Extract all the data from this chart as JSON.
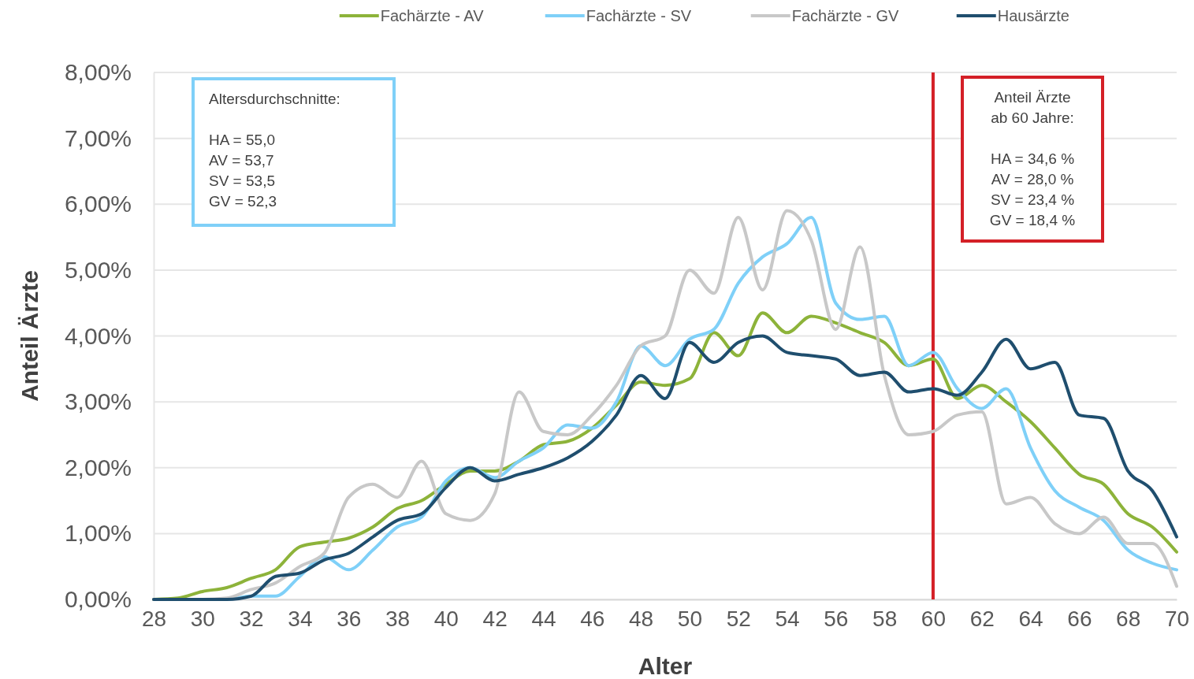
{
  "chart_data": {
    "type": "line",
    "xlabel": "Alter",
    "ylabel": "Anteil Ärzte",
    "x": [
      28,
      29,
      30,
      31,
      32,
      33,
      34,
      35,
      36,
      37,
      38,
      39,
      40,
      41,
      42,
      43,
      44,
      45,
      46,
      47,
      48,
      49,
      50,
      51,
      52,
      53,
      54,
      55,
      56,
      57,
      58,
      59,
      60,
      61,
      62,
      63,
      64,
      65,
      66,
      67,
      68,
      69,
      70
    ],
    "series": [
      {
        "name": "Fachärzte - AV",
        "color": "#8db33a",
        "values": [
          0,
          0.02,
          0.12,
          0.18,
          0.32,
          0.45,
          0.8,
          0.87,
          0.93,
          1.1,
          1.38,
          1.5,
          1.75,
          1.95,
          1.95,
          2.1,
          2.35,
          2.4,
          2.6,
          2.95,
          3.3,
          3.25,
          3.35,
          4.05,
          3.7,
          4.35,
          4.05,
          4.3,
          4.2,
          4.05,
          3.9,
          3.55,
          3.65,
          3.05,
          3.25,
          3.0,
          2.7,
          2.3,
          1.9,
          1.75,
          1.3,
          1.1,
          0.72
        ]
      },
      {
        "name": "Fachärzte - SV",
        "color": "#7fd0f8",
        "values": [
          null,
          null,
          0,
          0,
          0.05,
          0.05,
          0.35,
          0.65,
          0.45,
          0.75,
          1.1,
          1.25,
          1.8,
          2.0,
          1.85,
          2.1,
          2.3,
          2.65,
          2.6,
          3.0,
          3.85,
          3.55,
          3.95,
          4.1,
          4.8,
          5.2,
          5.4,
          5.8,
          4.5,
          4.25,
          4.3,
          3.55,
          3.75,
          3.2,
          2.9,
          3.2,
          2.3,
          1.65,
          1.4,
          1.2,
          0.75,
          0.55,
          0.45
        ]
      },
      {
        "name": "Fachärzte - GV",
        "color": "#c8c8c8",
        "values": [
          0,
          0,
          0,
          0.02,
          0.15,
          0.25,
          0.5,
          0.7,
          1.55,
          1.75,
          1.55,
          2.1,
          1.3,
          1.2,
          1.6,
          3.15,
          2.55,
          2.5,
          2.8,
          3.25,
          3.85,
          4.0,
          5.0,
          4.65,
          5.8,
          4.7,
          5.9,
          5.45,
          4.1,
          5.35,
          3.4,
          2.5,
          2.55,
          2.8,
          2.85,
          1.45,
          1.55,
          1.15,
          1.0,
          1.25,
          0.85,
          0.85,
          0.2
        ]
      },
      {
        "name": "Hausärzte",
        "color": "#1f4e6e",
        "values": [
          0,
          0,
          0,
          0,
          0.05,
          0.35,
          0.4,
          0.6,
          0.7,
          0.95,
          1.2,
          1.3,
          1.7,
          2.0,
          1.8,
          1.9,
          2.0,
          2.15,
          2.4,
          2.8,
          3.4,
          3.05,
          3.9,
          3.6,
          3.9,
          4.0,
          3.75,
          3.7,
          3.65,
          3.4,
          3.45,
          3.15,
          3.2,
          3.1,
          3.45,
          3.95,
          3.5,
          3.6,
          2.8,
          2.75,
          1.95,
          1.65,
          0.95
        ]
      }
    ],
    "xlim": [
      28,
      70
    ],
    "xticks": [
      28,
      30,
      32,
      34,
      36,
      38,
      40,
      42,
      44,
      46,
      48,
      50,
      52,
      54,
      56,
      58,
      60,
      62,
      64,
      66,
      68,
      70
    ],
    "ylim": [
      0,
      8
    ],
    "yticks": [
      {
        "value": 0,
        "label": "0,00%"
      },
      {
        "value": 1,
        "label": "1,00%"
      },
      {
        "value": 2,
        "label": "2,00%"
      },
      {
        "value": 3,
        "label": "3,00%"
      },
      {
        "value": 4,
        "label": "4,00%"
      },
      {
        "value": 5,
        "label": "5,00%"
      },
      {
        "value": 6,
        "label": "6,00%"
      },
      {
        "value": 7,
        "label": "7,00%"
      },
      {
        "value": 8,
        "label": "8,00%"
      }
    ],
    "grid": "y",
    "legend": "top",
    "marker": "none",
    "line_style": "solid",
    "ref_lines": [
      {
        "axis": "x",
        "value": 60,
        "color": "#d42027"
      }
    ],
    "annotations": [
      "Altersdurchschnitte:\n\nHA = 55,0\nAV = 53,7\nSV = 53,5\nGV = 52,3",
      "Anteil Ärzte\nab 60 Jahre:\n\nHA = 34,6 %\nAV = 28,0 %\nSV = 23,4 %\nGV = 18,4 %"
    ]
  }
}
